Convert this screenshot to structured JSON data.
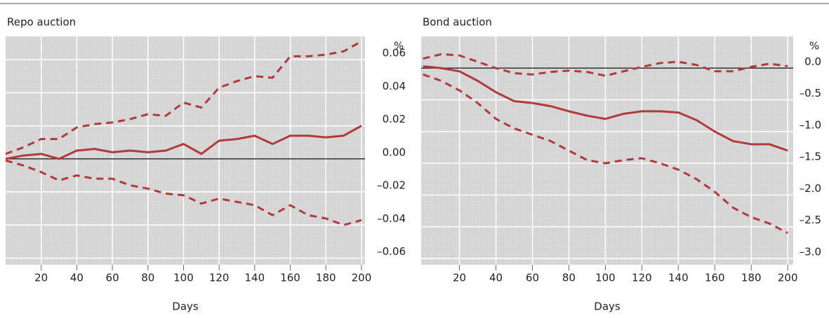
{
  "chart_data": [
    {
      "type": "line",
      "title": "Repo auction",
      "y_label": "%",
      "x_label": "Days",
      "x": [
        0,
        10,
        20,
        30,
        40,
        50,
        60,
        70,
        80,
        90,
        100,
        110,
        120,
        130,
        140,
        150,
        160,
        170,
        180,
        190,
        200
      ],
      "series": [
        {
          "color": "#b33a3a",
          "linestyle": "dashed",
          "values": [
            0.003,
            0.007,
            0.012,
            0.012,
            0.019,
            0.021,
            0.022,
            0.024,
            0.027,
            0.026,
            0.034,
            0.031,
            0.043,
            0.047,
            0.05,
            0.049,
            0.062,
            0.062,
            0.063,
            0.065,
            0.071
          ]
        },
        {
          "color": "#b33a3a",
          "linestyle": "solid",
          "values": [
            0.0,
            0.002,
            0.003,
            0.0,
            0.005,
            0.006,
            0.004,
            0.005,
            0.004,
            0.005,
            0.009,
            0.003,
            0.011,
            0.012,
            0.014,
            0.009,
            0.014,
            0.014,
            0.013,
            0.014,
            0.02
          ]
        },
        {
          "color": "#b33a3a",
          "linestyle": "dashed",
          "values": [
            -0.001,
            -0.004,
            -0.008,
            -0.013,
            -0.01,
            -0.012,
            -0.012,
            -0.016,
            -0.018,
            -0.021,
            -0.022,
            -0.027,
            -0.024,
            -0.026,
            -0.028,
            -0.034,
            -0.028,
            -0.034,
            -0.036,
            -0.04,
            -0.037
          ]
        }
      ],
      "reference_line": 0,
      "xlim": [
        0,
        202
      ],
      "ylim": [
        -0.064,
        0.074
      ],
      "xticks": [
        20,
        40,
        60,
        80,
        100,
        120,
        140,
        160,
        180,
        200
      ],
      "yticks": [
        {
          "value": -0.06,
          "label": "–0.06"
        },
        {
          "value": -0.04,
          "label": "–0.04"
        },
        {
          "value": -0.02,
          "label": "–0.02"
        },
        {
          "value": 0,
          "label": "0.00"
        },
        0.02,
        0.04,
        0.06
      ],
      "grid": true
    },
    {
      "type": "line",
      "title": "Bond auction",
      "y_label": "%",
      "x_label": "Days",
      "x": [
        0,
        10,
        20,
        30,
        40,
        50,
        60,
        70,
        80,
        90,
        100,
        110,
        120,
        130,
        140,
        150,
        160,
        170,
        180,
        190,
        200
      ],
      "series": [
        {
          "color": "#b33a3a",
          "linestyle": "dashed",
          "values": [
            0.15,
            0.22,
            0.2,
            0.1,
            0.0,
            -0.08,
            -0.1,
            -0.06,
            -0.04,
            -0.06,
            -0.12,
            -0.05,
            0.02,
            0.08,
            0.1,
            0.05,
            -0.05,
            -0.05,
            0.02,
            0.07,
            0.03
          ]
        },
        {
          "color": "#b33a3a",
          "linestyle": "solid",
          "values": [
            0.03,
            0.0,
            -0.05,
            -0.2,
            -0.38,
            -0.52,
            -0.55,
            -0.6,
            -0.68,
            -0.75,
            -0.8,
            -0.72,
            -0.68,
            -0.68,
            -0.7,
            -0.82,
            -1.0,
            -1.15,
            -1.2,
            -1.2,
            -1.3
          ]
        },
        {
          "color": "#b33a3a",
          "linestyle": "dashed",
          "values": [
            -0.1,
            -0.2,
            -0.35,
            -0.55,
            -0.8,
            -0.95,
            -1.05,
            -1.15,
            -1.3,
            -1.45,
            -1.5,
            -1.45,
            -1.42,
            -1.5,
            -1.6,
            -1.75,
            -1.95,
            -2.2,
            -2.35,
            -2.45,
            -2.6
          ]
        }
      ],
      "reference_line": 0,
      "xlim": [
        -1,
        203
      ],
      "ylim": [
        -3.1,
        0.5
      ],
      "xticks": [
        20,
        40,
        60,
        80,
        100,
        120,
        140,
        160,
        180,
        200
      ],
      "yticks": [
        {
          "value": -3,
          "label": "–3.0"
        },
        {
          "value": -2.5,
          "label": "–2.5"
        },
        {
          "value": -2,
          "label": "–2.0"
        },
        {
          "value": -1.5,
          "label": "–1.5"
        },
        {
          "value": -1,
          "label": "–1.0"
        },
        {
          "value": -0.5,
          "label": "–0.5"
        },
        {
          "value": 0,
          "label": "0.0"
        }
      ],
      "grid": true
    }
  ]
}
